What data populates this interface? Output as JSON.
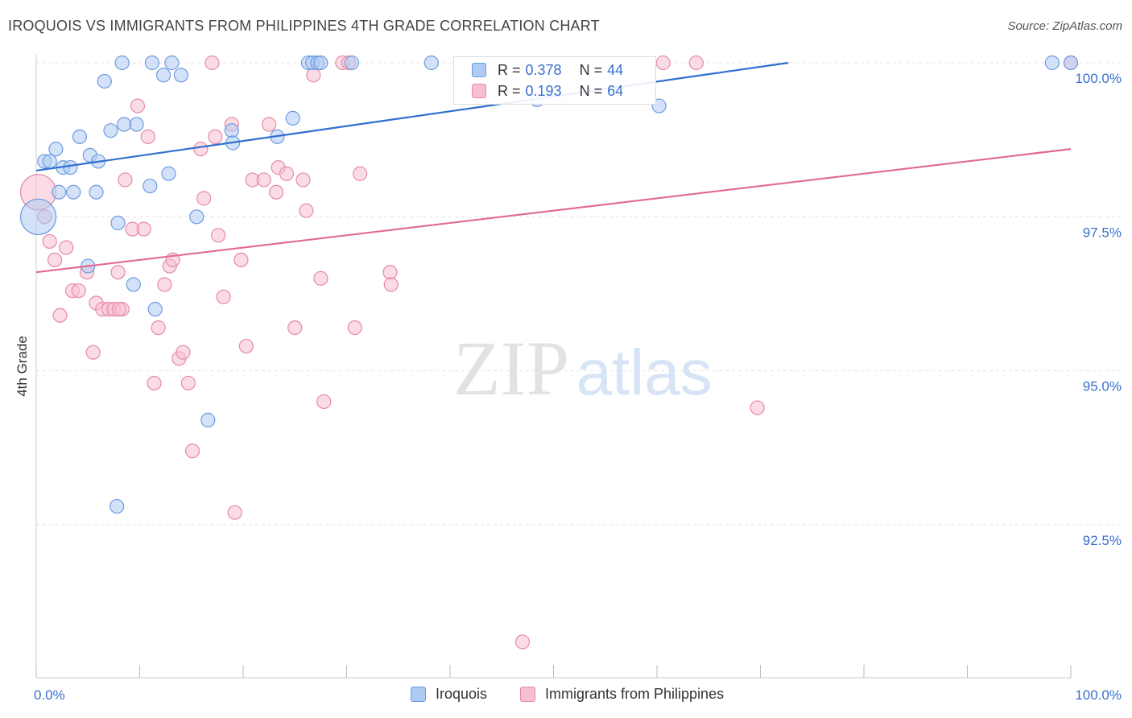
{
  "header": {
    "title": "IROQUOIS VS IMMIGRANTS FROM PHILIPPINES 4TH GRADE CORRELATION CHART",
    "source": "Source: ZipAtlas.com"
  },
  "watermark": {
    "zip": "ZIP",
    "atlas": "atlas"
  },
  "legend": {
    "rows": [
      {
        "r_label": "R =",
        "r_value": "0.378",
        "n_label": "N =",
        "n_value": "44"
      },
      {
        "r_label": "R =",
        "r_value": "0.193",
        "n_label": "N =",
        "n_value": "64"
      }
    ]
  },
  "colors": {
    "blue_fill": "#aecbf3",
    "blue_stroke": "#6d9be0",
    "blue_line": "#2f6fcf",
    "pink_fill": "#f7bfd0",
    "pink_stroke": "#e68aa8",
    "pink_line": "#e06a94",
    "tick_text": "#3a6fcf"
  },
  "chart_data": {
    "type": "scatter",
    "title": "IROQUOIS VS IMMIGRANTS FROM PHILIPPINES 4TH GRADE CORRELATION CHART",
    "xlabel": "",
    "ylabel": "4th Grade",
    "xlim": [
      0,
      100
    ],
    "ylim": [
      90.0,
      100.2
    ],
    "x_tick_labels": [
      "0.0%",
      "100.0%"
    ],
    "y_ticks": [
      100.0,
      97.5,
      95.0,
      92.5
    ],
    "y_tick_labels": [
      "100.0%",
      "97.5%",
      "95.0%",
      "92.5%"
    ],
    "grid": true,
    "legend_position": "bottom",
    "series": [
      {
        "name": "Iroquois",
        "color": "#aecbf3",
        "trend": {
          "x0": 0,
          "y0": 98.25,
          "x1": 72.7,
          "y1": 100.0
        },
        "points": [
          {
            "x": 0.2,
            "y": 97.5,
            "big": true
          },
          {
            "x": 0.8,
            "y": 98.4
          },
          {
            "x": 1.3,
            "y": 98.4
          },
          {
            "x": 1.9,
            "y": 98.6
          },
          {
            "x": 2.2,
            "y": 97.9
          },
          {
            "x": 2.6,
            "y": 98.3
          },
          {
            "x": 3.3,
            "y": 98.3
          },
          {
            "x": 4.2,
            "y": 98.8
          },
          {
            "x": 5.2,
            "y": 98.5
          },
          {
            "x": 5.8,
            "y": 97.9
          },
          {
            "x": 6.0,
            "y": 98.4
          },
          {
            "x": 6.6,
            "y": 99.7
          },
          {
            "x": 7.2,
            "y": 98.9
          },
          {
            "x": 8.3,
            "y": 100.0
          },
          {
            "x": 8.5,
            "y": 99.0
          },
          {
            "x": 9.7,
            "y": 99.0
          },
          {
            "x": 11.0,
            "y": 98.0
          },
          {
            "x": 11.2,
            "y": 100.0
          },
          {
            "x": 12.3,
            "y": 99.8
          },
          {
            "x": 12.8,
            "y": 98.2
          },
          {
            "x": 13.1,
            "y": 100.0
          },
          {
            "x": 14.0,
            "y": 99.8
          },
          {
            "x": 15.5,
            "y": 97.5
          },
          {
            "x": 18.9,
            "y": 98.9
          },
          {
            "x": 19.0,
            "y": 98.7
          },
          {
            "x": 23.3,
            "y": 98.8
          },
          {
            "x": 24.8,
            "y": 99.1
          },
          {
            "x": 26.3,
            "y": 100.0
          },
          {
            "x": 26.7,
            "y": 100.0
          },
          {
            "x": 27.2,
            "y": 100.0
          },
          {
            "x": 27.5,
            "y": 100.0
          },
          {
            "x": 30.5,
            "y": 100.0
          },
          {
            "x": 38.2,
            "y": 100.0
          },
          {
            "x": 48.4,
            "y": 99.4
          },
          {
            "x": 60.2,
            "y": 99.3
          },
          {
            "x": 98.2,
            "y": 100.0
          },
          {
            "x": 100.0,
            "y": 100.0
          },
          {
            "x": 5.0,
            "y": 96.7
          },
          {
            "x": 9.4,
            "y": 96.4
          },
          {
            "x": 11.5,
            "y": 96.0
          },
          {
            "x": 16.6,
            "y": 94.2
          },
          {
            "x": 7.8,
            "y": 92.8
          },
          {
            "x": 7.9,
            "y": 97.4
          },
          {
            "x": 3.6,
            "y": 97.9
          }
        ]
      },
      {
        "name": "Immigrants from Philippines",
        "color": "#f7bfd0",
        "trend": {
          "x0": 0,
          "y0": 96.6,
          "x1": 100,
          "y1": 98.6
        },
        "points": [
          {
            "x": 0.2,
            "y": 97.9,
            "big": true
          },
          {
            "x": 0.8,
            "y": 97.5
          },
          {
            "x": 1.3,
            "y": 97.1
          },
          {
            "x": 1.8,
            "y": 96.8
          },
          {
            "x": 2.3,
            "y": 95.9
          },
          {
            "x": 2.9,
            "y": 97.0
          },
          {
            "x": 3.5,
            "y": 96.3
          },
          {
            "x": 4.1,
            "y": 96.3
          },
          {
            "x": 4.9,
            "y": 96.6
          },
          {
            "x": 5.5,
            "y": 95.3
          },
          {
            "x": 5.8,
            "y": 96.1
          },
          {
            "x": 6.4,
            "y": 96.0
          },
          {
            "x": 7.0,
            "y": 96.0
          },
          {
            "x": 7.5,
            "y": 96.0
          },
          {
            "x": 7.9,
            "y": 96.6
          },
          {
            "x": 8.3,
            "y": 96.0
          },
          {
            "x": 8.6,
            "y": 98.1
          },
          {
            "x": 9.3,
            "y": 97.3
          },
          {
            "x": 9.8,
            "y": 99.3
          },
          {
            "x": 10.4,
            "y": 97.3
          },
          {
            "x": 10.8,
            "y": 98.8
          },
          {
            "x": 11.4,
            "y": 94.8
          },
          {
            "x": 11.8,
            "y": 95.7
          },
          {
            "x": 12.4,
            "y": 96.4
          },
          {
            "x": 12.9,
            "y": 96.7
          },
          {
            "x": 13.2,
            "y": 96.8
          },
          {
            "x": 13.8,
            "y": 95.2
          },
          {
            "x": 14.2,
            "y": 95.3
          },
          {
            "x": 14.7,
            "y": 94.8
          },
          {
            "x": 15.1,
            "y": 93.7
          },
          {
            "x": 15.9,
            "y": 98.6
          },
          {
            "x": 16.2,
            "y": 97.8
          },
          {
            "x": 17.3,
            "y": 98.8
          },
          {
            "x": 17.6,
            "y": 97.2
          },
          {
            "x": 18.1,
            "y": 96.2
          },
          {
            "x": 18.9,
            "y": 99.0
          },
          {
            "x": 19.2,
            "y": 92.7
          },
          {
            "x": 19.8,
            "y": 96.8
          },
          {
            "x": 20.3,
            "y": 95.4
          },
          {
            "x": 20.9,
            "y": 98.1
          },
          {
            "x": 22.0,
            "y": 98.1
          },
          {
            "x": 22.5,
            "y": 99.0
          },
          {
            "x": 23.2,
            "y": 97.9
          },
          {
            "x": 23.4,
            "y": 98.3
          },
          {
            "x": 24.2,
            "y": 98.2
          },
          {
            "x": 25.0,
            "y": 95.7
          },
          {
            "x": 25.8,
            "y": 98.1
          },
          {
            "x": 26.1,
            "y": 97.6
          },
          {
            "x": 26.8,
            "y": 99.8
          },
          {
            "x": 27.5,
            "y": 96.5
          },
          {
            "x": 27.8,
            "y": 94.5
          },
          {
            "x": 29.6,
            "y": 100.0
          },
          {
            "x": 30.2,
            "y": 100.0
          },
          {
            "x": 30.8,
            "y": 95.7
          },
          {
            "x": 31.3,
            "y": 98.2
          },
          {
            "x": 34.2,
            "y": 96.6
          },
          {
            "x": 34.3,
            "y": 96.4
          },
          {
            "x": 47.0,
            "y": 90.6
          },
          {
            "x": 60.6,
            "y": 100.0
          },
          {
            "x": 63.8,
            "y": 100.0
          },
          {
            "x": 69.7,
            "y": 94.4
          },
          {
            "x": 100.0,
            "y": 100.0
          },
          {
            "x": 17.0,
            "y": 100.0
          },
          {
            "x": 8.0,
            "y": 96.0
          }
        ]
      }
    ]
  }
}
